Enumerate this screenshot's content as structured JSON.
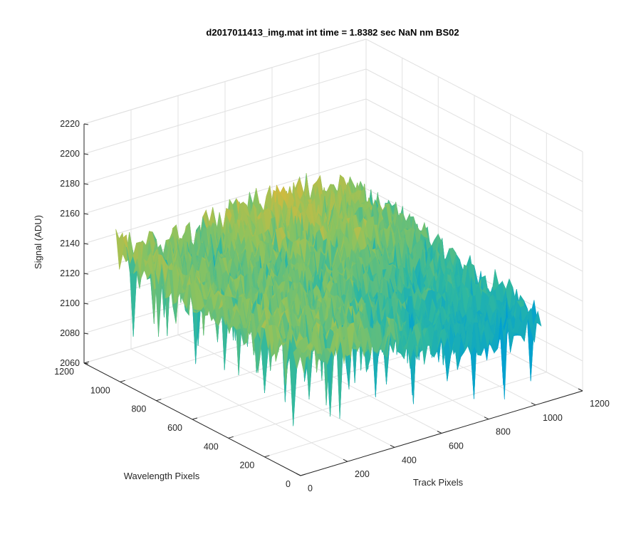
{
  "chart_data": {
    "type": "surface",
    "title": "d2017011413_img.mat int time = 1.8382 sec  NaN nm BS02",
    "xlabel": "Track Pixels",
    "ylabel": "Wavelength Pixels",
    "zlabel": "Signal (ADU)",
    "xlim": [
      0,
      1200
    ],
    "ylim": [
      0,
      1200
    ],
    "zlim": [
      2060,
      2220
    ],
    "x_ticks": [
      "0",
      "200",
      "400",
      "600",
      "800",
      "1000",
      "1200"
    ],
    "y_ticks": [
      "0",
      "200",
      "400",
      "600",
      "800",
      "1000",
      "1200"
    ],
    "z_ticks": [
      "2060",
      "2080",
      "2100",
      "2120",
      "2140",
      "2160",
      "2180",
      "2200",
      "2220"
    ],
    "grid": true,
    "colormap": "parula",
    "surface_x_range": [
      0,
      1024
    ],
    "surface_y_range": [
      0,
      1024
    ],
    "surface_z_range": [
      2075,
      2175
    ],
    "colors": {
      "axis": "#262626",
      "grid": "#e1e1e1",
      "parula_low": "#0072bd",
      "parula_mid": "#2fb8a0",
      "parula_high": "#edb120"
    }
  }
}
